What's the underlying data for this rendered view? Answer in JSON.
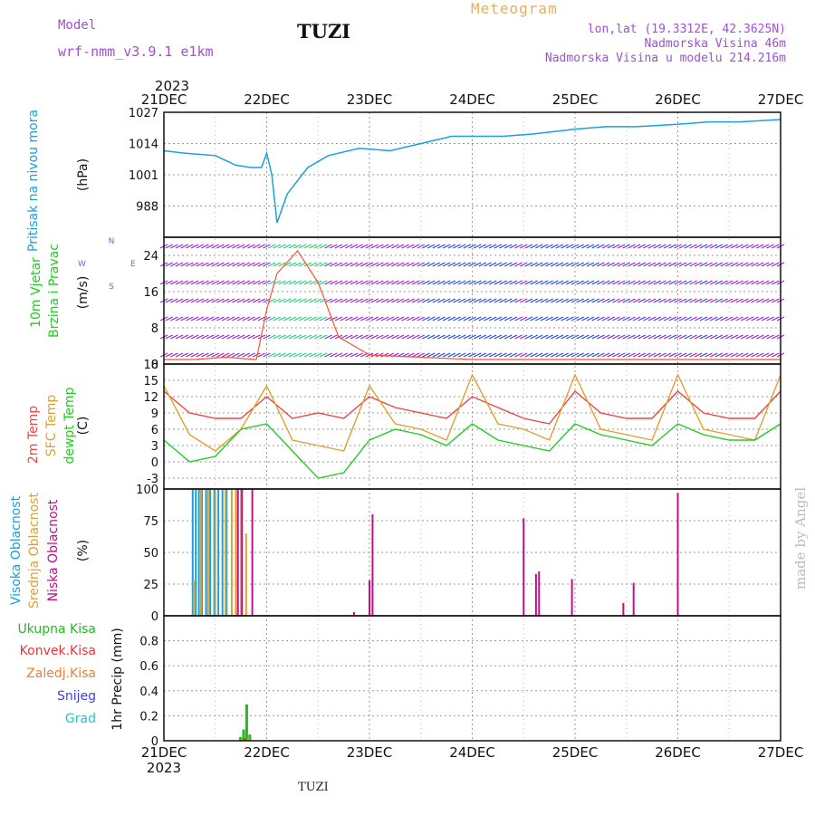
{
  "header": {
    "model_label": "Model",
    "model_name": "wrf-nmm_v3.9.1 e1km",
    "station": "TUZI",
    "meteogram_label": "Meteogram",
    "coords": "lon,lat (19.3312E, 42.3625N)",
    "altitude": "Nadmorska Visina 46m",
    "model_altitude": "Nadmorska Visina u modelu 214.216m"
  },
  "footer": {
    "station": "TUZI",
    "credit": "made by Angel"
  },
  "time_axis": {
    "year": "2023",
    "days": [
      "21DEC",
      "22DEC",
      "23DEC",
      "24DEC",
      "25DEC",
      "26DEC",
      "27DEC"
    ]
  },
  "legend": {
    "pressure": [
      "Pritisak na nivou mora",
      "(hPa)"
    ],
    "wind": [
      "10m Vjetar",
      "Brzina i Pravac",
      "(m/s)"
    ],
    "compass": [
      "N",
      "S",
      "E",
      "W"
    ],
    "temp": [
      "2m Temp",
      "SFC Temp",
      "dewpt Temp",
      "(C)"
    ],
    "cloud": [
      "Visoka Oblacnost",
      "Srednja Oblacnost",
      "Niska Oblacnost",
      "(%)"
    ],
    "precip": [
      "Ukupna Kisa",
      "Konvek.Kisa",
      "Zaledj.Kisa",
      "Snijeg",
      "Grad",
      "1hr Precip (mm)"
    ]
  },
  "colors": {
    "pressure": "#1aa0e0",
    "wind_purple": "#9020d0",
    "wind_blue": "#2040e0",
    "wind_green": "#20d070",
    "wind_red": "#ff5030",
    "temp2m": "#ee4444",
    "sfc": "#e0a030",
    "dew": "#22cc22",
    "cloud_high": "#1aa0e0",
    "cloud_mid": "#e0a030",
    "cloud_low": "#c0108a",
    "rain_total": "#22bb22",
    "rain_conv": "#ee3333",
    "rain_frz": "#f08030",
    "snow": "#4040e0",
    "hail": "#30c0c0"
  },
  "chart_data": [
    {
      "type": "line",
      "ylabel": "Pritisak na nivou mora (hPa)",
      "ylim": [
        975,
        1027
      ],
      "yticks": [
        988,
        1001,
        1014,
        1027
      ],
      "x_unit": "days since 21DEC 00z",
      "series": [
        {
          "name": "Pritisak na nivou mora",
          "x": [
            0,
            0.2,
            0.5,
            0.7,
            0.85,
            0.95,
            1.0,
            1.05,
            1.1,
            1.2,
            1.4,
            1.6,
            1.9,
            2.2,
            2.5,
            2.8,
            3.0,
            3.3,
            3.6,
            4.0,
            4.3,
            4.6,
            5.0,
            5.3,
            5.6,
            6.0
          ],
          "y": [
            1011,
            1010,
            1009,
            1005,
            1004,
            1004,
            1010,
            1001,
            981,
            993,
            1004,
            1009,
            1012,
            1011,
            1014,
            1017,
            1017,
            1017,
            1018,
            1020,
            1021,
            1021,
            1022,
            1023,
            1023,
            1024
          ]
        }
      ]
    },
    {
      "type": "line",
      "ylabel": "10m Vjetar Brzina i Pravac (m/s)",
      "ylim": [
        0,
        28
      ],
      "yticks": [
        0,
        8,
        16,
        24
      ],
      "series": [
        {
          "name": "Brzina",
          "x": [
            0,
            0.3,
            0.6,
            0.9,
            1.0,
            1.1,
            1.3,
            1.5,
            1.7,
            2.0,
            2.5,
            3.0,
            3.5,
            4.0,
            4.5,
            5.0,
            5.5,
            6.0
          ],
          "y": [
            1,
            1,
            1.5,
            1,
            12,
            20,
            25,
            18,
            6,
            2,
            1.5,
            1,
            1,
            1,
            1,
            1,
            1,
            1
          ]
        }
      ]
    },
    {
      "type": "line",
      "ylabel": "Temp (C)",
      "ylim": [
        -5,
        18
      ],
      "yticks": [
        -3,
        0,
        3,
        6,
        9,
        12,
        15,
        18
      ],
      "series": [
        {
          "name": "2m Temp",
          "x": [
            0,
            0.25,
            0.5,
            0.75,
            1.0,
            1.25,
            1.5,
            1.75,
            2.0,
            2.25,
            2.5,
            2.75,
            3.0,
            3.25,
            3.5,
            3.75,
            4.0,
            4.25,
            4.5,
            4.75,
            5.0,
            5.25,
            5.5,
            5.75,
            6.0
          ],
          "y": [
            13,
            9,
            8,
            8,
            12,
            8,
            9,
            8,
            12,
            10,
            9,
            8,
            12,
            10,
            8,
            7,
            13,
            9,
            8,
            8,
            13,
            9,
            8,
            8,
            13
          ]
        },
        {
          "name": "SFC Temp",
          "x": [
            0,
            0.25,
            0.5,
            0.75,
            1.0,
            1.25,
            1.5,
            1.75,
            2.0,
            2.25,
            2.5,
            2.75,
            3.0,
            3.25,
            3.5,
            3.75,
            4.0,
            4.25,
            4.5,
            4.75,
            5.0,
            5.25,
            5.5,
            5.75,
            6.0
          ],
          "y": [
            14,
            5,
            2,
            6,
            14,
            4,
            3,
            2,
            14,
            7,
            6,
            4,
            16,
            7,
            6,
            4,
            16,
            6,
            5,
            4,
            16,
            6,
            5,
            4,
            16
          ]
        },
        {
          "name": "dewpt Temp",
          "x": [
            0,
            0.25,
            0.5,
            0.75,
            1.0,
            1.25,
            1.5,
            1.75,
            2.0,
            2.25,
            2.5,
            2.75,
            3.0,
            3.25,
            3.5,
            3.75,
            4.0,
            4.25,
            4.5,
            4.75,
            5.0,
            5.25,
            5.5,
            5.75,
            6.0
          ],
          "y": [
            4,
            0,
            1,
            6,
            7,
            2,
            -3,
            -2,
            4,
            6,
            5,
            3,
            7,
            4,
            3,
            2,
            7,
            5,
            4,
            3,
            7,
            5,
            4,
            4,
            7
          ]
        }
      ]
    },
    {
      "type": "bar",
      "ylabel": "Oblacnost (%)",
      "ylim": [
        0,
        100
      ],
      "yticks": [
        0,
        25,
        50,
        75,
        100
      ],
      "series": [
        {
          "name": "Visoka Oblacnost",
          "x": [
            0.28,
            0.31,
            0.34,
            0.37,
            0.41,
            0.45,
            0.49,
            0.53,
            0.57,
            0.61
          ],
          "values": [
            100,
            100,
            100,
            100,
            100,
            100,
            100,
            100,
            100,
            100
          ]
        },
        {
          "name": "Srednja Oblacnost",
          "x": [
            0.29,
            0.36,
            0.43,
            0.5,
            0.6,
            0.66,
            0.7,
            0.75,
            0.8
          ],
          "values": [
            28,
            100,
            100,
            100,
            100,
            100,
            100,
            100,
            65
          ]
        },
        {
          "name": "Niska Oblacnost",
          "x": [
            0.72,
            0.76,
            0.86,
            1.85,
            2.0,
            2.03,
            3.5,
            3.62,
            3.65,
            3.97,
            4.47,
            4.57,
            5.0
          ],
          "values": [
            100,
            100,
            100,
            3,
            28,
            80,
            77,
            33,
            35,
            29,
            10,
            26,
            97
          ]
        }
      ]
    },
    {
      "type": "bar",
      "ylabel": "1hr Precip (mm)",
      "ylim": [
        0,
        1.0
      ],
      "yticks": [
        0,
        0.2,
        0.4,
        0.6,
        0.8
      ],
      "series": [
        {
          "name": "Ukupna Kisa",
          "x": [
            0.75,
            0.78,
            0.81,
            0.84
          ],
          "values": [
            0.03,
            0.09,
            0.29,
            0.05
          ]
        },
        {
          "name": "Konvek.Kisa",
          "x": [
            0.78
          ],
          "values": [
            0.02
          ]
        },
        {
          "name": "Zaledj.Kisa",
          "x": [
            0.81
          ],
          "values": [
            0.02
          ]
        }
      ]
    }
  ]
}
